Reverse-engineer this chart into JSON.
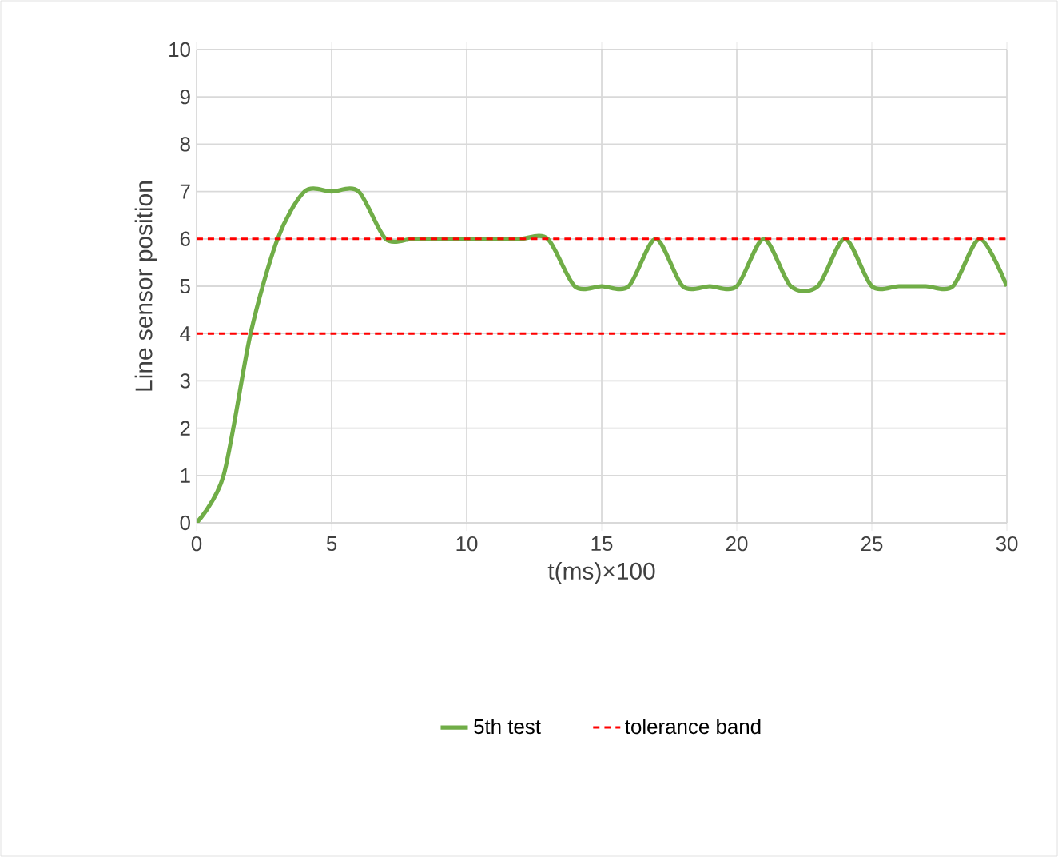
{
  "chart_data": {
    "type": "line",
    "xlabel": "t(ms)×100",
    "ylabel": "Line sensor position",
    "x": [
      0,
      1,
      2,
      3,
      4,
      5,
      6,
      7,
      8,
      9,
      10,
      11,
      12,
      13,
      14,
      15,
      16,
      17,
      18,
      19,
      20,
      21,
      22,
      23,
      24,
      25,
      26,
      27,
      28,
      29,
      30
    ],
    "series": [
      {
        "name": "5th test",
        "color": "#70ad47",
        "values": [
          0,
          1,
          4,
          6,
          7,
          7,
          7,
          6,
          6,
          6,
          6,
          6,
          6,
          6,
          5,
          5,
          5,
          6,
          5,
          5,
          5,
          6,
          5,
          5,
          6,
          5,
          5,
          5,
          5,
          6,
          5
        ]
      },
      {
        "name": "tolerance band",
        "color": "#ff0000",
        "line_style": "dashed",
        "values": [
          6,
          6,
          6,
          6,
          6,
          6,
          6,
          6,
          6,
          6,
          6,
          6,
          6,
          6,
          6,
          6,
          6,
          6,
          6,
          6,
          6,
          6,
          6,
          6,
          6,
          6,
          6,
          6,
          6,
          6,
          6
        ]
      },
      {
        "color": "#ff0000",
        "line_style": "dashed",
        "values": [
          4,
          4,
          4,
          4,
          4,
          4,
          4,
          4,
          4,
          4,
          4,
          4,
          4,
          4,
          4,
          4,
          4,
          4,
          4,
          4,
          4,
          4,
          4,
          4,
          4,
          4,
          4,
          4,
          4,
          4,
          4
        ]
      }
    ],
    "xlim": [
      0,
      30
    ],
    "xticks": [
      0,
      5,
      10,
      15,
      20,
      25,
      30
    ],
    "ylim": [
      0,
      10
    ],
    "yticks": [
      0,
      1,
      2,
      3,
      4,
      5,
      6,
      7,
      8,
      9,
      10
    ],
    "grid": true,
    "legend": "bottom"
  }
}
